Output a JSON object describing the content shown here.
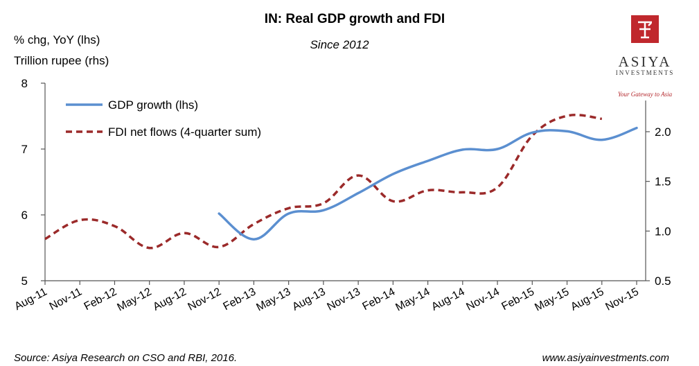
{
  "chart_data": {
    "type": "line",
    "title": "IN: Real GDP growth and FDI",
    "subtitle": "Since 2012",
    "ylabel_left": "% chg, YoY (lhs)",
    "ylabel_right": "Trillion rupee (rhs)",
    "y_left_range": [
      5,
      8
    ],
    "y_left_ticks": [
      "5",
      "6",
      "7",
      "8"
    ],
    "y_right_range": [
      0.5,
      2.5
    ],
    "y_right_ticks": [
      "0.5",
      "1.0",
      "1.5",
      "2.0"
    ],
    "x_labels": [
      "Aug-11",
      "Nov-11",
      "Feb-12",
      "May-12",
      "Aug-12",
      "Nov-12",
      "Feb-13",
      "May-13",
      "Aug-13",
      "Nov-13",
      "Feb-14",
      "May-14",
      "Aug-14",
      "Nov-14",
      "Feb-15",
      "May-15",
      "Aug-15",
      "Nov-15"
    ],
    "legend_position": "top-left",
    "grid": false,
    "series": [
      {
        "name": "GDP growth (lhs)",
        "axis": "left",
        "color": "#5b8fd0",
        "style": "solid",
        "points": [
          {
            "x": "Nov-12",
            "y": 6.02
          },
          {
            "x": "Feb-13",
            "y": 5.63
          },
          {
            "x": "May-13",
            "y": 6.02
          },
          {
            "x": "Aug-13",
            "y": 6.07
          },
          {
            "x": "Nov-13",
            "y": 6.33
          },
          {
            "x": "Feb-14",
            "y": 6.62
          },
          {
            "x": "May-14",
            "y": 6.82
          },
          {
            "x": "Aug-14",
            "y": 6.99
          },
          {
            "x": "Nov-14",
            "y": 7.0
          },
          {
            "x": "Feb-15",
            "y": 7.25
          },
          {
            "x": "May-15",
            "y": 7.27
          },
          {
            "x": "Aug-15",
            "y": 7.14
          },
          {
            "x": "Nov-15",
            "y": 7.32
          }
        ]
      },
      {
        "name": "FDI net flows (4-quarter sum)",
        "axis": "right",
        "color": "#9b2a2a",
        "style": "dashed",
        "points": [
          {
            "x": "Aug-11",
            "y": 0.92
          },
          {
            "x": "Nov-11",
            "y": 1.11
          },
          {
            "x": "Feb-12",
            "y": 1.05
          },
          {
            "x": "May-12",
            "y": 0.83
          },
          {
            "x": "Aug-12",
            "y": 0.98
          },
          {
            "x": "Nov-12",
            "y": 0.84
          },
          {
            "x": "Feb-13",
            "y": 1.07
          },
          {
            "x": "May-13",
            "y": 1.23
          },
          {
            "x": "Aug-13",
            "y": 1.28
          },
          {
            "x": "Nov-13",
            "y": 1.56
          },
          {
            "x": "Feb-14",
            "y": 1.3
          },
          {
            "x": "May-14",
            "y": 1.41
          },
          {
            "x": "Aug-14",
            "y": 1.39
          },
          {
            "x": "Nov-14",
            "y": 1.44
          },
          {
            "x": "Feb-15",
            "y": 1.96
          },
          {
            "x": "May-15",
            "y": 2.16
          },
          {
            "x": "Aug-15",
            "y": 2.13
          }
        ]
      }
    ]
  },
  "footer": {
    "source": "Source: Asiya Research on CSO and RBI, 2016.",
    "website": "www.asiyainvestments.com"
  },
  "logo": {
    "name": "ASIYA",
    "sub": "INVESTMENTS",
    "tagline": "Your Gateway to Asia",
    "color": "#c0282d"
  }
}
